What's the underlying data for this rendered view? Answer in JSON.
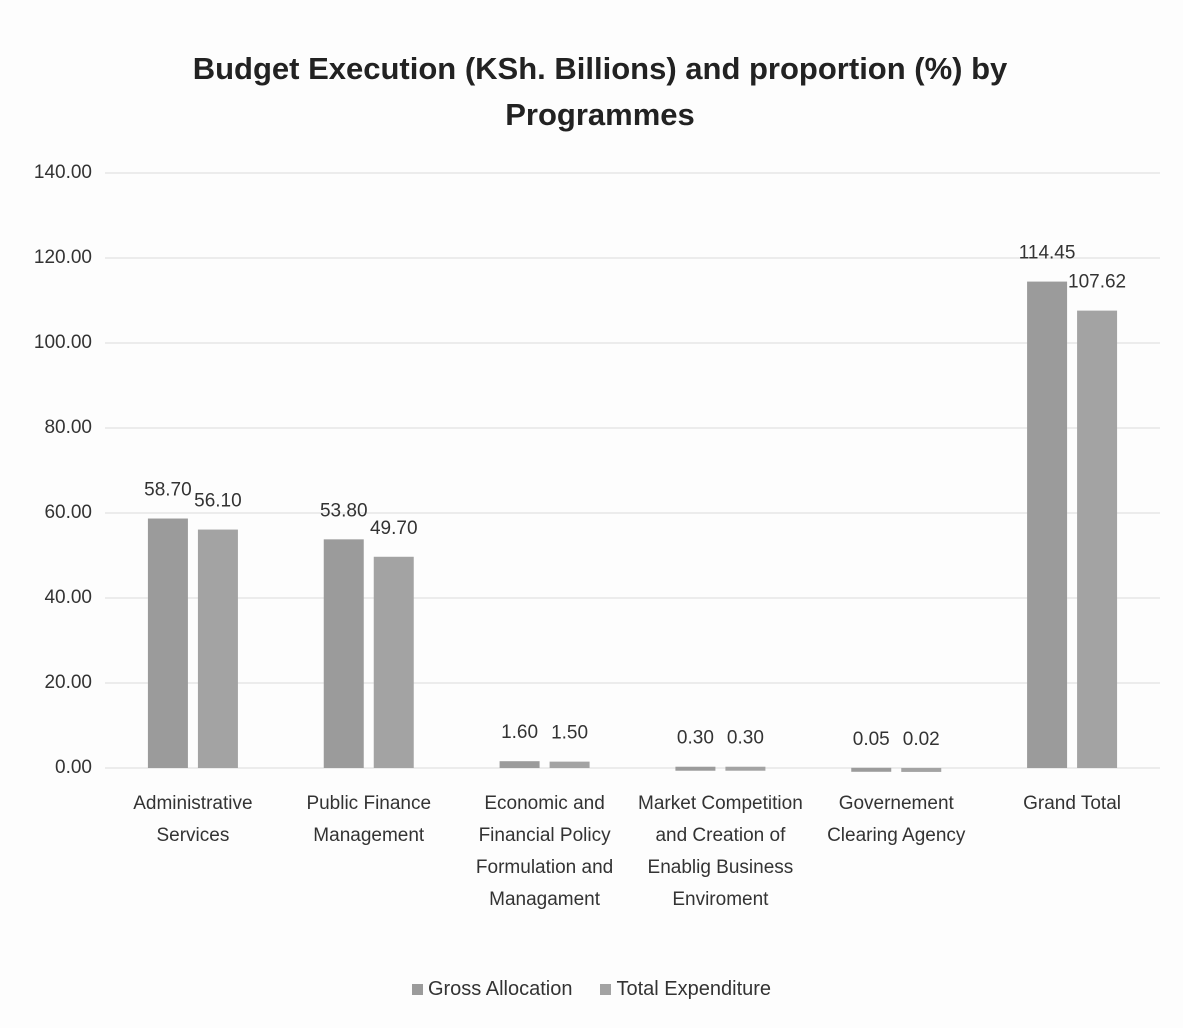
{
  "chart_data": {
    "type": "bar",
    "title": "Budget Execution (KSh. Billions) and proportion (%) by Programmes",
    "categories": [
      "Administrative Services",
      "Public Finance Management",
      "Economic and Financial Policy Formulation and Managament",
      "Market Competition and Creation of Enablig Business Enviroment",
      "Governement Clearing Agency",
      "Grand Total"
    ],
    "series": [
      {
        "name": "Gross Allocation",
        "color": "#9b9b9b",
        "values": [
          58.7,
          53.8,
          1.6,
          0.3,
          0.05,
          114.45
        ],
        "value_labels": [
          "58.70",
          "53.80",
          "1.60",
          "0.30",
          "0.05",
          "114.45"
        ]
      },
      {
        "name": "Total Expenditure",
        "color": "#a3a3a3",
        "values": [
          56.1,
          49.7,
          1.5,
          0.3,
          0.02,
          107.62
        ],
        "value_labels": [
          "56.10",
          "49.70",
          "1.50",
          "0.30",
          "0.02",
          "107.62"
        ]
      }
    ],
    "ylim": [
      0,
      140
    ],
    "yticks": [
      {
        "value": 0,
        "label": "0.00"
      },
      {
        "value": 20,
        "label": "20.00"
      },
      {
        "value": 40,
        "label": "40.00"
      },
      {
        "value": 60,
        "label": "60.00"
      },
      {
        "value": 80,
        "label": "80.00"
      },
      {
        "value": 100,
        "label": "100.00"
      },
      {
        "value": 120,
        "label": "120.00"
      },
      {
        "value": 140,
        "label": "140.00"
      }
    ],
    "grid": true,
    "legend": "bottom"
  }
}
